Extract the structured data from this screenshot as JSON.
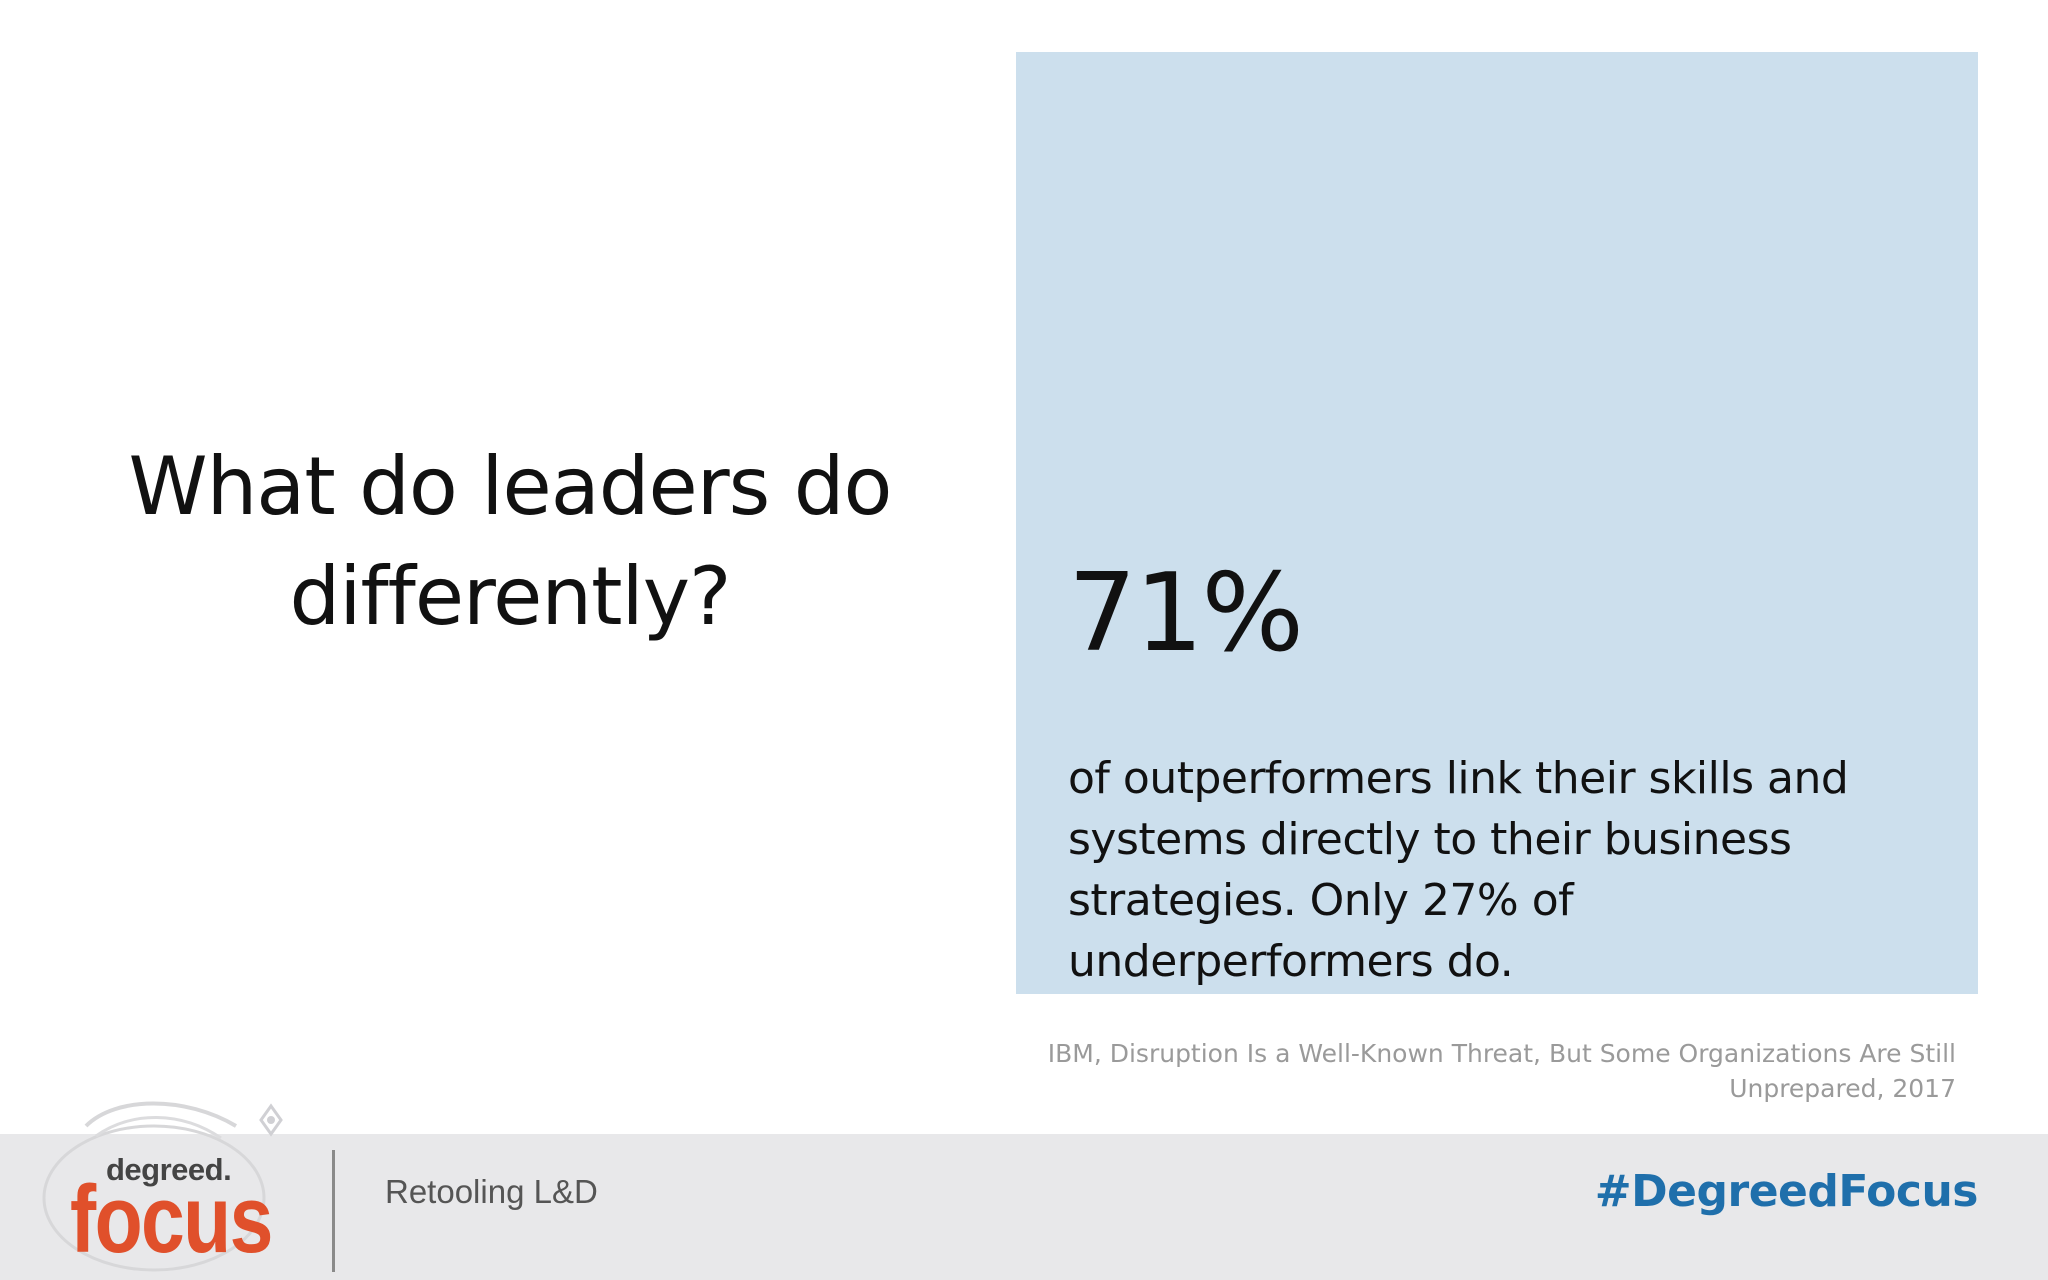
{
  "slide": {
    "question": "What do leaders do differently?",
    "stat": {
      "figure": "71%",
      "text": "of outperformers link their skills and systems directly to their business strategies. Only 27% of underperformers do."
    },
    "source": "IBM, Disruption Is a Well-Known Threat, But Some Organizations Are Still Unprepared, 2017"
  },
  "footer": {
    "logo_small": "degreed.",
    "logo_large": "focus",
    "label": "Retooling L&D",
    "hashtag": "#DegreedFocus"
  },
  "colors": {
    "stat_box": "#ccdfed",
    "footer_bar": "#e8e8ea",
    "logo_accent": "#e0502b",
    "hashtag": "#1f6fab"
  }
}
